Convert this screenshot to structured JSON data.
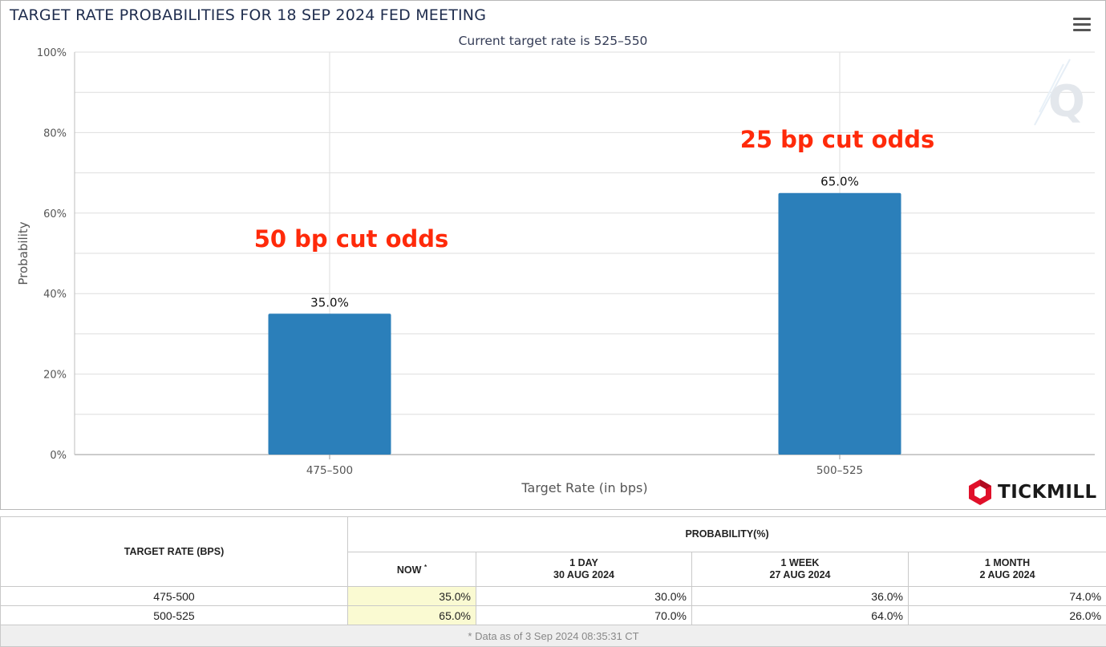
{
  "header": {
    "title": "TARGET RATE PROBABILITIES FOR 18 SEP 2024 FED MEETING",
    "subtitle": "Current target rate is 525–550"
  },
  "watermark": {
    "letter": "Q"
  },
  "logo": {
    "text": "TICKMILL",
    "icon": "hexagon-logo-icon",
    "color": "#e0102a"
  },
  "annotations": [
    {
      "text": "50 bp cut odds",
      "color": "#ff2a0a"
    },
    {
      "text": "25 bp cut odds",
      "color": "#ff2a0a"
    }
  ],
  "colors": {
    "bar": "#2b7fba",
    "grid": "#d9d9d9",
    "now_highlight": "#fafad2"
  },
  "chart_data": {
    "type": "bar",
    "title": "TARGET RATE PROBABILITIES FOR 18 SEP 2024 FED MEETING",
    "subtitle": "Current target rate is 525–550",
    "categories": [
      "475–500",
      "500–525"
    ],
    "values": [
      35.0,
      65.0
    ],
    "data_labels": [
      "35.0%",
      "65.0%"
    ],
    "xlabel": "Target Rate (in bps)",
    "ylabel": "Probability",
    "ylim": [
      0,
      100
    ],
    "yticks": [
      "0%",
      "20%",
      "40%",
      "60%",
      "80%",
      "100%"
    ],
    "ytick_values": [
      0,
      20,
      40,
      60,
      80,
      100
    ],
    "grid": true,
    "legend": "none"
  },
  "table": {
    "col_target": "TARGET RATE (BPS)",
    "col_prob": "PROBABILITY(%)",
    "sub_headers": [
      {
        "line1": "NOW",
        "line2": ""
      },
      {
        "line1": "1 DAY",
        "line2": "30 AUG 2024"
      },
      {
        "line1": "1 WEEK",
        "line2": "27 AUG 2024"
      },
      {
        "line1": "1 MONTH",
        "line2": "2 AUG 2024"
      }
    ],
    "now_marker": "*",
    "rows": [
      {
        "rate": "475-500",
        "now": "35.0%",
        "day": "30.0%",
        "week": "36.0%",
        "month": "74.0%"
      },
      {
        "rate": "500-525",
        "now": "65.0%",
        "day": "70.0%",
        "week": "64.0%",
        "month": "26.0%"
      }
    ],
    "footnote": "* Data as of 3 Sep 2024 08:35:31 CT"
  }
}
